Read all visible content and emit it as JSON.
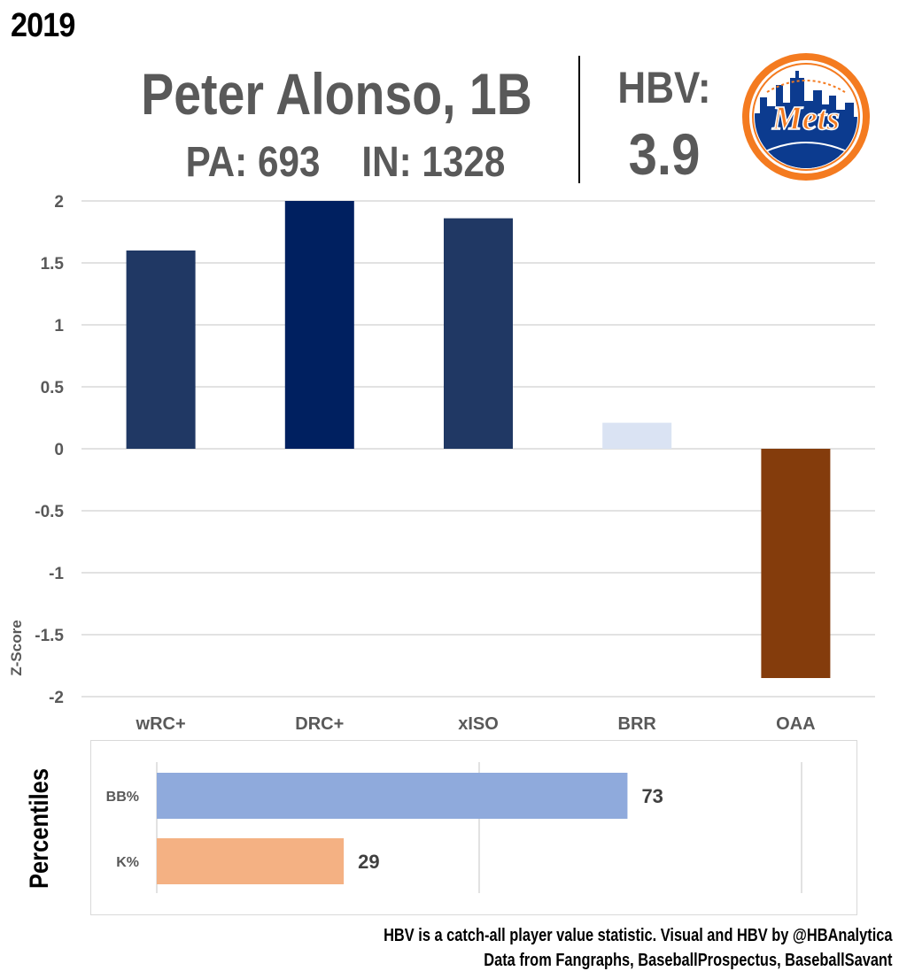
{
  "header": {
    "year": "2019",
    "player_name": "Peter Alonso, 1B",
    "pa_in": "PA: 693    IN: 1328",
    "hbv_label": "HBV:",
    "hbv_value": "3.9",
    "logo_text": "Mets"
  },
  "chart_data": [
    {
      "type": "bar",
      "categories": [
        "wRC+",
        "DRC+",
        "xISO",
        "BRR",
        "OAA"
      ],
      "values": [
        1.6,
        2.0,
        1.86,
        0.21,
        -1.85
      ],
      "colors": [
        "#203864",
        "#002060",
        "#203864",
        "#dae3f3",
        "#843c0c"
      ],
      "ylabel": "Z-Score",
      "ylim": [
        -2,
        2
      ],
      "yticks": [
        "2",
        "1.5",
        "1",
        "0.5",
        "0",
        "-0.5",
        "-1",
        "-1.5",
        "-2"
      ],
      "grid": true
    },
    {
      "type": "bar",
      "orientation": "horizontal",
      "categories": [
        "BB%",
        "K%"
      ],
      "values": [
        73,
        29
      ],
      "colors": [
        "#8faadc",
        "#f4b183"
      ],
      "ylabel": "Percentiles",
      "xlim": [
        0,
        100
      ],
      "grid": true
    }
  ],
  "footer": {
    "line1": "HBV is a catch-all player value statistic. Visual and HBV by @HBAnalytica",
    "line2": "Data from Fangraphs, BaseballProspectus, BaseballSavant"
  }
}
